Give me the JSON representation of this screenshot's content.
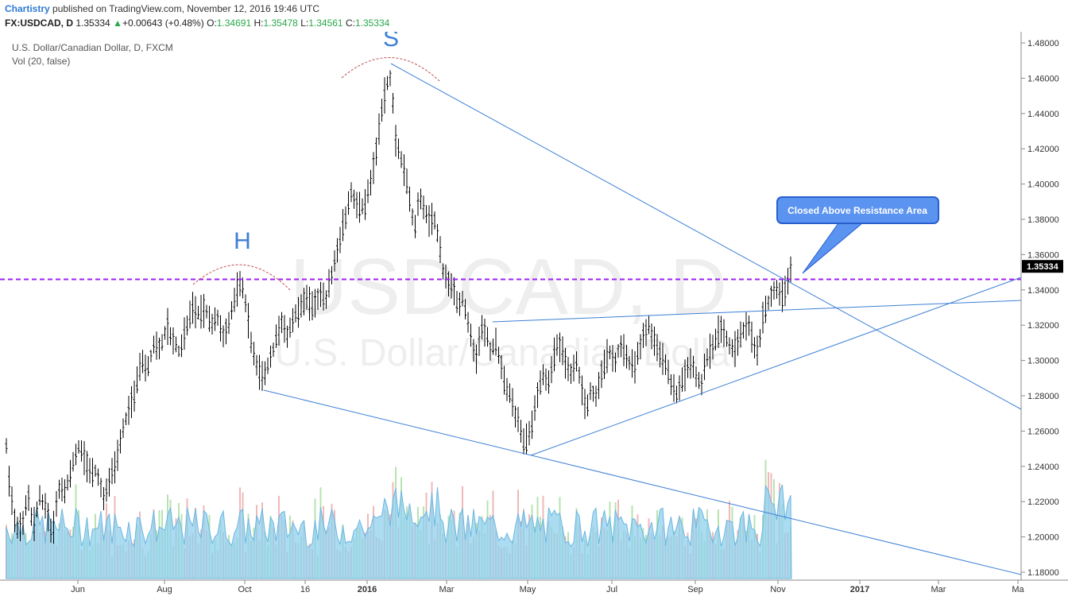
{
  "header": {
    "author": "Chartistry",
    "published_text": "published on TradingView.com, November 12, 2016 19:46 UTC",
    "symbol": "FX:USDCAD, D",
    "last": "1.35334",
    "change": "+0.00643 (+0.48%)",
    "o_label": "O:",
    "o_value": "1.34691",
    "h_label": "H:",
    "h_value": "1.35478",
    "l_label": "L:",
    "l_value": "1.34561",
    "c_label": "C:",
    "c_value": "1.35334"
  },
  "legend": {
    "line1": "U.S. Dollar/Canadian Dollar, D, FXCM",
    "line2": "Vol (20, false)"
  },
  "colors": {
    "candle": "#000000",
    "trendline": "#3d7fd6",
    "resistance": "#a020f0",
    "volume_ma": "#8fd0ee",
    "volume_up": "#b7e3b1",
    "volume_down": "#f0b8b8",
    "callout_fill": "#5b93f0",
    "arc": "#c05050",
    "watermark": "#eeeeee"
  },
  "chart_data": {
    "type": "candlestick",
    "watermark": "USDCAD, D",
    "watermark_sub": "U.S. Dollar/Canadian Dollar",
    "y_ticks": [
      "1.48000",
      "1.46000",
      "1.44000",
      "1.42000",
      "1.40000",
      "1.38000",
      "1.36000",
      "1.34000",
      "1.32000",
      "1.30000",
      "1.28000",
      "1.26000",
      "1.24000",
      "1.22000",
      "1.20000",
      "1.18000"
    ],
    "ylim": [
      1.175,
      1.4875
    ],
    "current_price": "1.35334",
    "x_ticks": [
      "Jun",
      "Aug",
      "Oct",
      "16",
      "2016",
      "Mar",
      "May",
      "Jul",
      "Sep",
      "Nov",
      "2017",
      "Mar",
      "Ma"
    ],
    "bold_x_ticks": [
      "2016",
      "2017"
    ],
    "resistance_level": 1.346,
    "annotations": {
      "head_label": "S",
      "shoulder_label": "H",
      "callout": "Closed Above Resistance Area"
    },
    "price_path": [
      [
        0,
        1.245
      ],
      [
        6,
        1.262
      ],
      [
        12,
        1.228
      ],
      [
        20,
        1.205
      ],
      [
        28,
        1.205
      ],
      [
        35,
        1.225
      ],
      [
        42,
        1.205
      ],
      [
        50,
        1.222
      ],
      [
        58,
        1.215
      ],
      [
        66,
        1.2
      ],
      [
        74,
        1.228
      ],
      [
        82,
        1.225
      ],
      [
        90,
        1.238
      ],
      [
        98,
        1.252
      ],
      [
        106,
        1.245
      ],
      [
        114,
        1.235
      ],
      [
        122,
        1.238
      ],
      [
        130,
        1.222
      ],
      [
        138,
        1.232
      ],
      [
        146,
        1.242
      ],
      [
        154,
        1.26
      ],
      [
        162,
        1.272
      ],
      [
        170,
        1.282
      ],
      [
        178,
        1.3
      ],
      [
        186,
        1.295
      ],
      [
        194,
        1.31
      ],
      [
        202,
        1.306
      ],
      [
        210,
        1.32
      ],
      [
        218,
        1.31
      ],
      [
        226,
        1.305
      ],
      [
        234,
        1.318
      ],
      [
        242,
        1.33
      ],
      [
        250,
        1.326
      ],
      [
        258,
        1.33
      ],
      [
        266,
        1.32
      ],
      [
        274,
        1.325
      ],
      [
        282,
        1.312
      ],
      [
        290,
        1.325
      ],
      [
        298,
        1.34
      ],
      [
        304,
        1.345
      ],
      [
        310,
        1.33
      ],
      [
        316,
        1.31
      ],
      [
        322,
        1.3
      ],
      [
        330,
        1.29
      ],
      [
        338,
        1.298
      ],
      [
        346,
        1.31
      ],
      [
        354,
        1.322
      ],
      [
        362,
        1.315
      ],
      [
        370,
        1.325
      ],
      [
        378,
        1.33
      ],
      [
        386,
        1.335
      ],
      [
        394,
        1.33
      ],
      [
        402,
        1.338
      ],
      [
        410,
        1.335
      ],
      [
        418,
        1.35
      ],
      [
        426,
        1.365
      ],
      [
        434,
        1.38
      ],
      [
        442,
        1.395
      ],
      [
        450,
        1.388
      ],
      [
        458,
        1.385
      ],
      [
        466,
        1.4
      ],
      [
        474,
        1.42
      ],
      [
        480,
        1.44
      ],
      [
        486,
        1.455
      ],
      [
        492,
        1.462
      ],
      [
        498,
        1.425
      ],
      [
        504,
        1.415
      ],
      [
        510,
        1.405
      ],
      [
        516,
        1.39
      ],
      [
        522,
        1.375
      ],
      [
        528,
        1.395
      ],
      [
        534,
        1.385
      ],
      [
        540,
        1.378
      ],
      [
        546,
        1.382
      ],
      [
        552,
        1.368
      ],
      [
        558,
        1.35
      ],
      [
        564,
        1.345
      ],
      [
        570,
        1.34
      ],
      [
        576,
        1.332
      ],
      [
        582,
        1.335
      ],
      [
        588,
        1.325
      ],
      [
        594,
        1.31
      ],
      [
        600,
        1.3
      ],
      [
        606,
        1.32
      ],
      [
        612,
        1.315
      ],
      [
        618,
        1.305
      ],
      [
        624,
        1.31
      ],
      [
        630,
        1.3
      ],
      [
        636,
        1.285
      ],
      [
        642,
        1.28
      ],
      [
        648,
        1.27
      ],
      [
        654,
        1.265
      ],
      [
        660,
        1.252
      ],
      [
        666,
        1.258
      ],
      [
        672,
        1.27
      ],
      [
        678,
        1.285
      ],
      [
        684,
        1.292
      ],
      [
        690,
        1.288
      ],
      [
        696,
        1.3
      ],
      [
        702,
        1.31
      ],
      [
        708,
        1.305
      ],
      [
        714,
        1.295
      ],
      [
        720,
        1.292
      ],
      [
        726,
        1.3
      ],
      [
        732,
        1.282
      ],
      [
        738,
        1.272
      ],
      [
        744,
        1.285
      ],
      [
        750,
        1.28
      ],
      [
        756,
        1.292
      ],
      [
        762,
        1.3
      ],
      [
        768,
        1.305
      ],
      [
        774,
        1.298
      ],
      [
        780,
        1.31
      ],
      [
        786,
        1.305
      ],
      [
        792,
        1.3
      ],
      [
        798,
        1.295
      ],
      [
        804,
        1.305
      ],
      [
        810,
        1.315
      ],
      [
        816,
        1.32
      ],
      [
        822,
        1.312
      ],
      [
        828,
        1.305
      ],
      [
        834,
        1.3
      ],
      [
        840,
        1.295
      ],
      [
        846,
        1.285
      ],
      [
        852,
        1.28
      ],
      [
        858,
        1.288
      ],
      [
        864,
        1.295
      ],
      [
        870,
        1.3
      ],
      [
        876,
        1.292
      ],
      [
        882,
        1.285
      ],
      [
        888,
        1.298
      ],
      [
        894,
        1.305
      ],
      [
        900,
        1.31
      ],
      [
        906,
        1.318
      ],
      [
        912,
        1.315
      ],
      [
        918,
        1.31
      ],
      [
        924,
        1.305
      ],
      [
        930,
        1.312
      ],
      [
        936,
        1.318
      ],
      [
        942,
        1.322
      ],
      [
        948,
        1.31
      ],
      [
        954,
        1.305
      ],
      [
        960,
        1.325
      ],
      [
        966,
        1.332
      ],
      [
        972,
        1.338
      ],
      [
        978,
        1.34
      ],
      [
        984,
        1.335
      ],
      [
        990,
        1.342
      ],
      [
        996,
        1.353
      ]
    ]
  }
}
